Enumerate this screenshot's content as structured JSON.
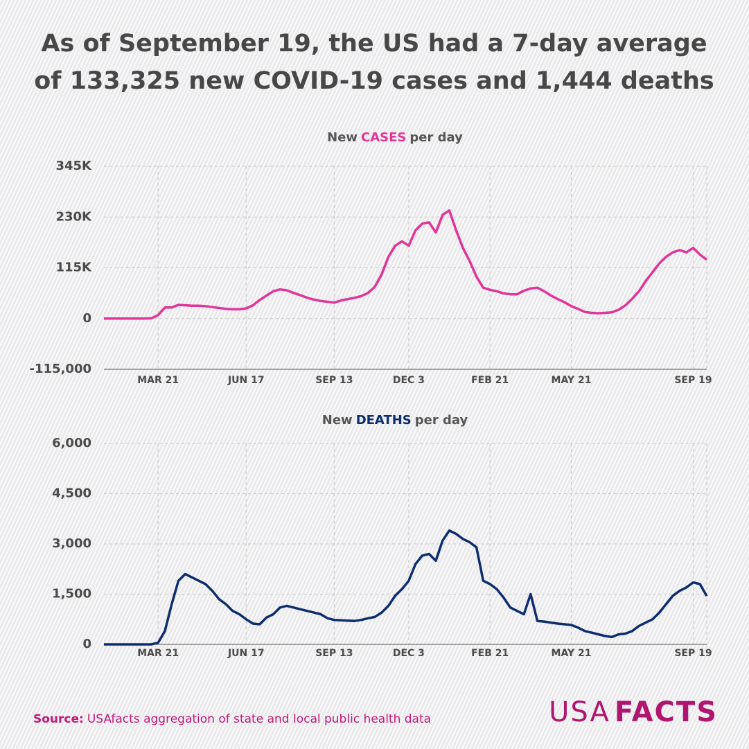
{
  "header": {
    "title_lines": [
      "As of September 19, the US had a 7-day average",
      "of 133,325 new COVID-19 cases and 1,444 deaths"
    ]
  },
  "chart_data": [
    {
      "type": "line",
      "title_prefix": "New",
      "title_highlight": "CASES",
      "title_suffix": "per day",
      "highlight_color": "#e0359a",
      "categories": [
        null,
        null,
        null,
        null,
        null,
        null,
        null,
        null,
        "MAR 21",
        null,
        null,
        null,
        null,
        null,
        null,
        null,
        null,
        null,
        null,
        null,
        null,
        "JUN 17",
        null,
        null,
        null,
        null,
        null,
        null,
        null,
        null,
        null,
        null,
        null,
        null,
        "SEP 13",
        null,
        null,
        null,
        null,
        null,
        null,
        null,
        null,
        null,
        null,
        "DEC 3",
        null,
        null,
        null,
        null,
        null,
        null,
        null,
        null,
        null,
        null,
        null,
        "FEB 21",
        null,
        null,
        null,
        null,
        null,
        null,
        null,
        null,
        null,
        null,
        null,
        "MAY 21",
        null,
        null,
        null,
        null,
        null,
        null,
        null,
        null,
        null,
        null,
        null,
        null,
        null,
        null,
        null,
        null,
        null,
        "SEP 19",
        null,
        null
      ],
      "series": [
        {
          "color": "#e0359a",
          "values": [
            0,
            0,
            0,
            0,
            0,
            0,
            100,
            500,
            8000,
            25000,
            25000,
            31000,
            30000,
            29000,
            29000,
            28000,
            26000,
            24000,
            22000,
            21000,
            21000,
            23000,
            30000,
            42000,
            52000,
            62000,
            66000,
            64000,
            58000,
            53000,
            47000,
            43000,
            40000,
            38000,
            36000,
            41000,
            44000,
            47000,
            51000,
            58000,
            72000,
            100000,
            140000,
            165000,
            175000,
            165000,
            200000,
            215000,
            218000,
            195000,
            235000,
            245000,
            200000,
            160000,
            130000,
            95000,
            70000,
            65000,
            62000,
            57000,
            55000,
            55000,
            63000,
            68000,
            70000,
            62000,
            52000,
            44000,
            37000,
            28000,
            22000,
            15000,
            13000,
            12000,
            13000,
            14000,
            20000,
            30000,
            45000,
            62000,
            85000,
            105000,
            125000,
            140000,
            150000,
            155000,
            150000,
            160000,
            145000,
            133325
          ]
        }
      ],
      "ylim": [
        -115000,
        345000
      ],
      "yticks": [
        {
          "value": -115000,
          "label": "-115,000"
        },
        0,
        {
          "value": 115000,
          "label": "115K"
        },
        {
          "value": 230000,
          "label": "230K"
        },
        {
          "value": 345000,
          "label": "345K"
        }
      ],
      "grid": true
    },
    {
      "type": "line",
      "title_prefix": "New",
      "title_highlight": "DEATHS",
      "title_suffix": "per day",
      "highlight_color": "#0d2d6e",
      "categories": [
        null,
        null,
        null,
        null,
        null,
        null,
        null,
        null,
        "MAR 21",
        null,
        null,
        null,
        null,
        null,
        null,
        null,
        null,
        null,
        null,
        null,
        null,
        "JUN 17",
        null,
        null,
        null,
        null,
        null,
        null,
        null,
        null,
        null,
        null,
        null,
        null,
        "SEP 13",
        null,
        null,
        null,
        null,
        null,
        null,
        null,
        null,
        null,
        null,
        "DEC 3",
        null,
        null,
        null,
        null,
        null,
        null,
        null,
        null,
        null,
        null,
        null,
        "FEB 21",
        null,
        null,
        null,
        null,
        null,
        null,
        null,
        null,
        null,
        null,
        null,
        "MAY 21",
        null,
        null,
        null,
        null,
        null,
        null,
        null,
        null,
        null,
        null,
        null,
        null,
        null,
        null,
        null,
        null,
        null,
        "SEP 19",
        null,
        null
      ],
      "series": [
        {
          "color": "#0d2d6e",
          "values": [
            0,
            0,
            0,
            0,
            0,
            0,
            0,
            0,
            50,
            400,
            1200,
            1900,
            2100,
            2000,
            1900,
            1800,
            1600,
            1350,
            1200,
            1000,
            900,
            750,
            620,
            600,
            800,
            900,
            1100,
            1150,
            1100,
            1050,
            1000,
            950,
            900,
            780,
            730,
            720,
            710,
            700,
            730,
            780,
            820,
            950,
            1150,
            1450,
            1650,
            1900,
            2400,
            2650,
            2700,
            2500,
            3100,
            3400,
            3300,
            3150,
            3050,
            2900,
            1900,
            1800,
            1650,
            1400,
            1100,
            1000,
            900,
            1500,
            700,
            680,
            650,
            620,
            600,
            580,
            500,
            400,
            350,
            300,
            250,
            220,
            300,
            320,
            400,
            550,
            650,
            750,
            950,
            1200,
            1450,
            1600,
            1700,
            1850,
            1800,
            1444
          ]
        }
      ],
      "ylim": [
        0,
        6000
      ],
      "yticks": [
        0,
        {
          "value": 1500,
          "label": "1,500"
        },
        {
          "value": 3000,
          "label": "3,000"
        },
        {
          "value": 4500,
          "label": "4,500"
        },
        {
          "value": 6000,
          "label": "6,000"
        }
      ],
      "grid": true
    }
  ],
  "footer": {
    "source_label": "Source:",
    "source_text": "USAfacts aggregation of state and local public health data",
    "logo_a": "USA",
    "logo_b": "FACTS"
  }
}
